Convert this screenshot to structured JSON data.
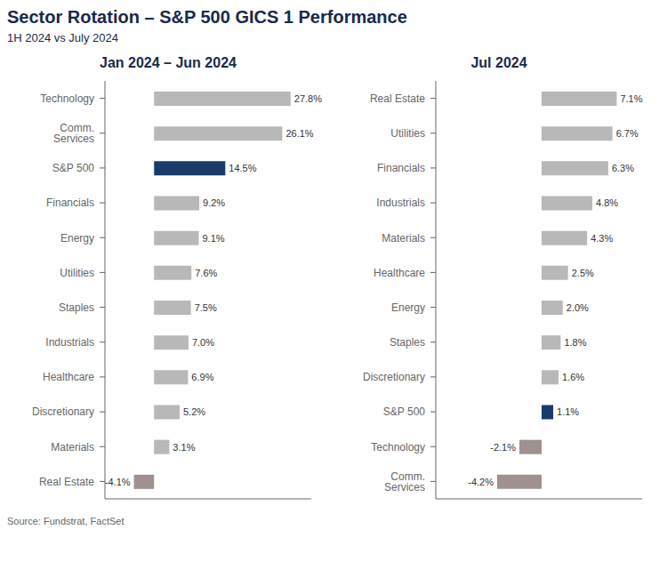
{
  "title": "Sector Rotation – S&P 500 GICS 1 Performance",
  "subtitle": "1H 2024 vs July 2024",
  "annotations": [
    "Source: Fundstrat, FactSet"
  ],
  "chart_data": [
    {
      "type": "bar",
      "title": "Jan 2024 – Jun 2024",
      "orientation": "horizontal",
      "categories": [
        "Technology",
        "Comm. Services",
        "S&P 500",
        "Financials",
        "Energy",
        "Utilities",
        "Staples",
        "Industrials",
        "Healthcare",
        "Discretionary",
        "Materials",
        "Real Estate"
      ],
      "values": [
        27.8,
        26.1,
        14.5,
        9.2,
        9.1,
        7.6,
        7.5,
        7.0,
        6.9,
        5.2,
        3.1,
        -4.1
      ],
      "value_labels": [
        "27.8%",
        "26.1%",
        "14.5%",
        "9.2%",
        "9.1%",
        "7.6%",
        "7.5%",
        "7.0%",
        "6.9%",
        "5.2%",
        "3.1%",
        "-4.1%"
      ],
      "data_labels": true,
      "colors": [
        "#b8b8b8",
        "#b8b8b8",
        "#1a3a6b",
        "#b8b8b8",
        "#b8b8b8",
        "#b8b8b8",
        "#b8b8b8",
        "#b8b8b8",
        "#b8b8b8",
        "#b8b8b8",
        "#b8b8b8",
        "#a09090"
      ],
      "xlim": [
        -10,
        32
      ],
      "tick_labels": "y",
      "grid": false
    },
    {
      "type": "bar",
      "title": "Jul 2024",
      "orientation": "horizontal",
      "categories": [
        "Real Estate",
        "Utilities",
        "Financials",
        "Industrials",
        "Materials",
        "Healthcare",
        "Energy",
        "Staples",
        "Discretionary",
        "S&P 500",
        "Technology",
        "Comm. Services"
      ],
      "values": [
        7.1,
        6.7,
        6.3,
        4.8,
        4.3,
        2.5,
        2.0,
        1.8,
        1.6,
        1.1,
        -2.1,
        -4.2
      ],
      "value_labels": [
        "7.1%",
        "6.7%",
        "6.3%",
        "4.8%",
        "4.3%",
        "2.5%",
        "2.0%",
        "1.8%",
        "1.6%",
        "1.1%",
        "-2.1%",
        "-4.2%"
      ],
      "data_labels": true,
      "colors": [
        "#b8b8b8",
        "#b8b8b8",
        "#b8b8b8",
        "#b8b8b8",
        "#b8b8b8",
        "#b8b8b8",
        "#b8b8b8",
        "#b8b8b8",
        "#b8b8b8",
        "#1a3a6b",
        "#a09090",
        "#a09090"
      ],
      "xlim": [
        -10,
        9.5
      ],
      "tick_labels": "y",
      "grid": false
    }
  ]
}
